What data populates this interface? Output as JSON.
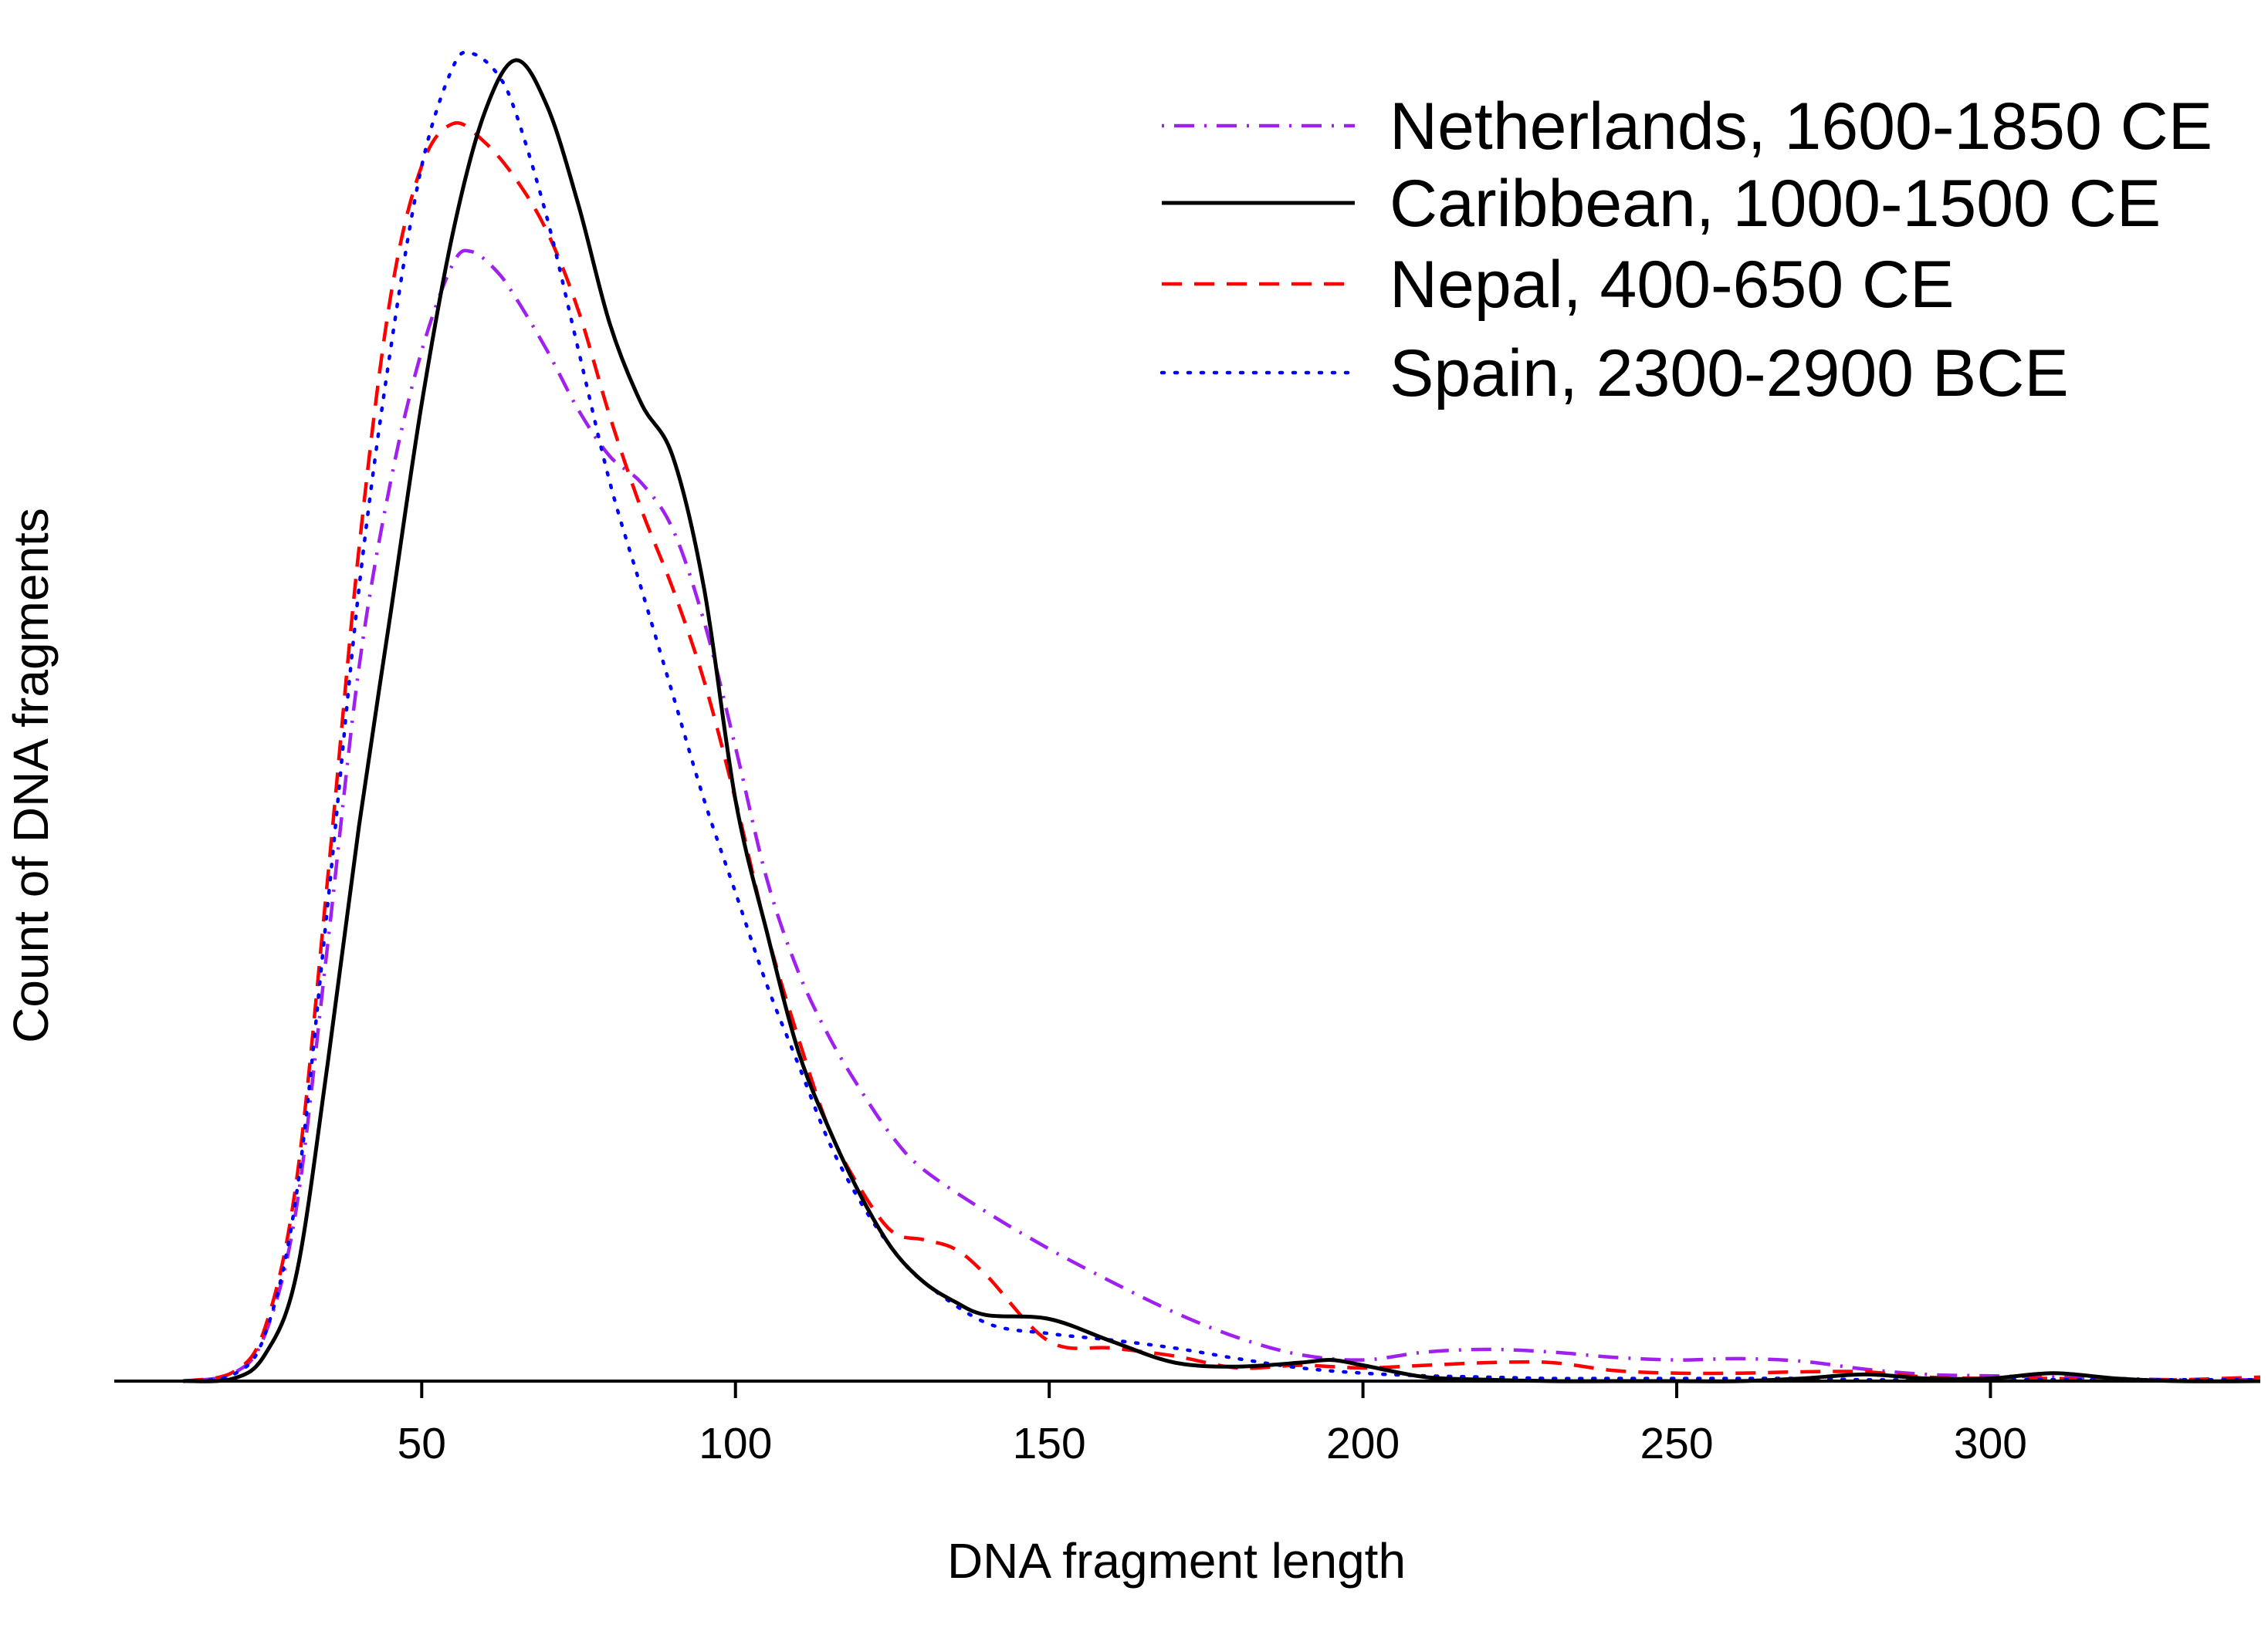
{
  "chart_data": {
    "type": "line",
    "title": "",
    "xlabel": "DNA fragment length",
    "ylabel": "Count of DNA fragments",
    "xlim": [
      1,
      343
    ],
    "ylim": [
      0,
      1.0
    ],
    "x_ticks": [
      50,
      100,
      150,
      200,
      250,
      300
    ],
    "y_ticks": [],
    "grid": false,
    "legend_position": "top-right",
    "series": [
      {
        "name": "Netherlands, 1600-1850 CE",
        "color": "#a020f0",
        "dash": "dotdash",
        "x": [
          12,
          20,
          25,
          30,
          35,
          40,
          45,
          50,
          55,
          58,
          62,
          65,
          70,
          75,
          80,
          85,
          90,
          95,
          100,
          105,
          110,
          115,
          120,
          125,
          130,
          140,
          150,
          160,
          170,
          180,
          190,
          200,
          210,
          220,
          230,
          240,
          250,
          260,
          270,
          280,
          290,
          300,
          310,
          320,
          330,
          343
        ],
        "y": [
          0,
          0.006,
          0.035,
          0.13,
          0.33,
          0.54,
          0.68,
          0.78,
          0.846,
          0.855,
          0.84,
          0.82,
          0.78,
          0.735,
          0.7,
          0.68,
          0.645,
          0.575,
          0.48,
          0.38,
          0.31,
          0.26,
          0.22,
          0.185,
          0.16,
          0.128,
          0.1,
          0.075,
          0.052,
          0.033,
          0.02,
          0.016,
          0.022,
          0.024,
          0.022,
          0.018,
          0.016,
          0.017,
          0.015,
          0.009,
          0.005,
          0.004,
          0.003,
          0.002,
          0.001,
          0.001
        ]
      },
      {
        "name": "Caribbean, 1000-1500 CE",
        "color": "#000000",
        "dash": "solid",
        "x": [
          12,
          20,
          25,
          30,
          35,
          40,
          45,
          50,
          55,
          60,
          65,
          70,
          75,
          80,
          85,
          90,
          95,
          100,
          105,
          110,
          115,
          120,
          125,
          130,
          135,
          140,
          150,
          160,
          170,
          180,
          190,
          195,
          200,
          210,
          220,
          230,
          240,
          250,
          260,
          270,
          280,
          290,
          300,
          310,
          320,
          330,
          343
        ],
        "y": [
          0,
          0.002,
          0.02,
          0.08,
          0.24,
          0.42,
          0.58,
          0.74,
          0.87,
          0.96,
          1.0,
          0.965,
          0.89,
          0.8,
          0.74,
          0.7,
          0.6,
          0.44,
          0.34,
          0.25,
          0.19,
          0.14,
          0.1,
          0.075,
          0.06,
          0.05,
          0.047,
          0.03,
          0.014,
          0.011,
          0.014,
          0.016,
          0.012,
          0.003,
          0.001,
          0.0,
          0.0,
          0.0,
          0.0,
          0.002,
          0.005,
          0.002,
          0.002,
          0.006,
          0.002,
          0.0,
          0.0
        ]
      },
      {
        "name": "Nepal, 400-650 CE",
        "color": "#ff0000",
        "dash": "dashed",
        "x": [
          12,
          20,
          25,
          30,
          35,
          40,
          45,
          50,
          55,
          60,
          65,
          70,
          75,
          80,
          85,
          90,
          95,
          100,
          105,
          110,
          115,
          120,
          125,
          130,
          135,
          140,
          150,
          160,
          170,
          180,
          190,
          200,
          210,
          220,
          230,
          240,
          250,
          260,
          270,
          280,
          290,
          300,
          310,
          320,
          330,
          343
        ],
        "y": [
          0,
          0.007,
          0.04,
          0.15,
          0.38,
          0.63,
          0.82,
          0.92,
          0.952,
          0.938,
          0.91,
          0.87,
          0.81,
          0.73,
          0.66,
          0.6,
          0.53,
          0.44,
          0.34,
          0.26,
          0.19,
          0.145,
          0.113,
          0.107,
          0.1,
          0.08,
          0.03,
          0.025,
          0.019,
          0.01,
          0.012,
          0.01,
          0.012,
          0.014,
          0.014,
          0.008,
          0.006,
          0.006,
          0.007,
          0.007,
          0.003,
          0.002,
          0.002,
          0.001,
          0.001,
          0.003
        ]
      },
      {
        "name": "Spain, 2300-2900 BCE",
        "color": "#0000ff",
        "dash": "dotted",
        "x": [
          12,
          20,
          25,
          30,
          35,
          40,
          45,
          50,
          55,
          58,
          62,
          65,
          70,
          75,
          80,
          85,
          90,
          95,
          100,
          105,
          110,
          115,
          120,
          125,
          130,
          140,
          150,
          160,
          170,
          180,
          190,
          200,
          210,
          220,
          230,
          240,
          250,
          260,
          270,
          280,
          290,
          300,
          310,
          320,
          330,
          343
        ],
        "y": [
          0,
          0.005,
          0.035,
          0.14,
          0.36,
          0.6,
          0.78,
          0.92,
          0.995,
          1.005,
          0.99,
          0.96,
          0.88,
          0.78,
          0.68,
          0.6,
          0.52,
          0.44,
          0.37,
          0.3,
          0.24,
          0.18,
          0.135,
          0.1,
          0.075,
          0.044,
          0.036,
          0.031,
          0.025,
          0.017,
          0.01,
          0.006,
          0.004,
          0.003,
          0.002,
          0.002,
          0.002,
          0.002,
          0.002,
          0.001,
          0.001,
          0.001,
          0.001,
          0.001,
          0.001,
          0.001
        ]
      }
    ]
  }
}
